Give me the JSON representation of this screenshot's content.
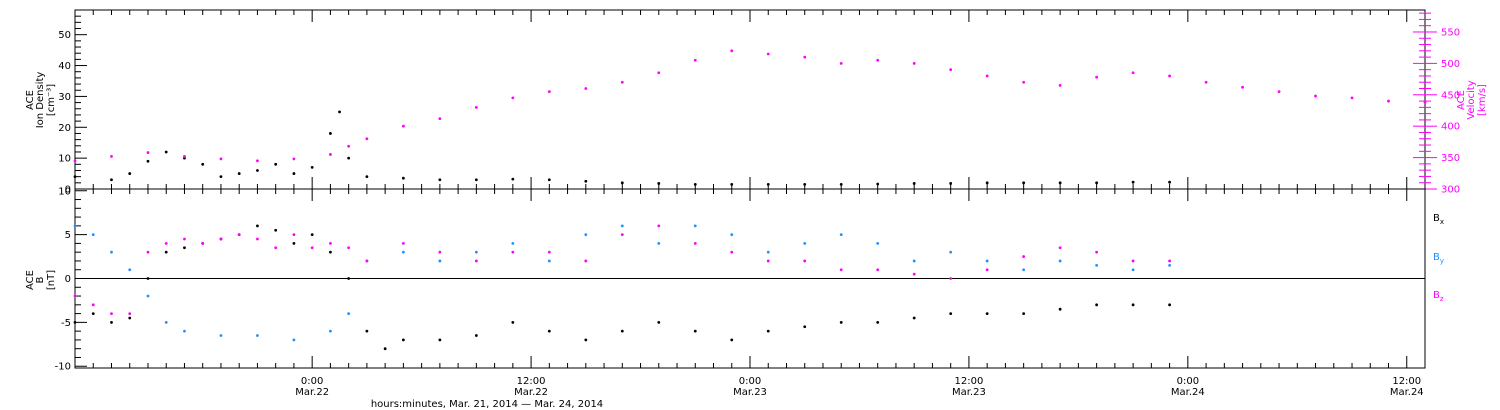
{
  "chart_data": [
    {
      "type": "scatter",
      "left_axis": {
        "label_lines": [
          "ACE",
          "Ion Density",
          "[cm⁻³]"
        ],
        "ylim": [
          0,
          58
        ],
        "ticks": [
          0,
          10,
          20,
          30,
          40,
          50
        ],
        "tick_labels": [
          "0",
          "10",
          "20",
          "30",
          "40",
          "50"
        ]
      },
      "right_axis": {
        "label_lines": [
          "ACE",
          "Velocity",
          "[km/s]"
        ],
        "ylim": [
          300,
          585
        ],
        "ticks": [
          300,
          350,
          400,
          450,
          500,
          550
        ],
        "tick_labels": [
          "300",
          "350",
          "400",
          "450",
          "500",
          "550"
        ],
        "color": "#ff00ff"
      },
      "series": [
        {
          "key": "density",
          "axis": "left",
          "color": "#000000",
          "points": [
            [
              0,
              4
            ],
            [
              2,
              3
            ],
            [
              3,
              5
            ],
            [
              4,
              9
            ],
            [
              5,
              12
            ],
            [
              6,
              10
            ],
            [
              7,
              8
            ],
            [
              8,
              4
            ],
            [
              9,
              5
            ],
            [
              10,
              6
            ],
            [
              11,
              8
            ],
            [
              12,
              5
            ],
            [
              13,
              7
            ],
            [
              14,
              18
            ],
            [
              14.5,
              25
            ],
            [
              15,
              10
            ],
            [
              16,
              4
            ],
            [
              18,
              3.5
            ],
            [
              20,
              3
            ],
            [
              22,
              3
            ],
            [
              24,
              3.2
            ],
            [
              26,
              3
            ],
            [
              28,
              2.5
            ],
            [
              30,
              2
            ],
            [
              32,
              1.8
            ],
            [
              34,
              1.5
            ],
            [
              36,
              1.5
            ],
            [
              38,
              1.5
            ],
            [
              40,
              1.5
            ],
            [
              42,
              1.5
            ],
            [
              44,
              1.6
            ],
            [
              46,
              1.8
            ],
            [
              48,
              1.8
            ],
            [
              50,
              2
            ],
            [
              52,
              2
            ],
            [
              54,
              2
            ],
            [
              56,
              2
            ],
            [
              58,
              2.2
            ],
            [
              60,
              2.2
            ]
          ]
        },
        {
          "key": "velocity",
          "axis": "right",
          "color": "#ff00ff",
          "points": [
            [
              0,
              345
            ],
            [
              2,
              352
            ],
            [
              4,
              358
            ],
            [
              6,
              352
            ],
            [
              8,
              348
            ],
            [
              10,
              345
            ],
            [
              12,
              348
            ],
            [
              14,
              355
            ],
            [
              15,
              368
            ],
            [
              16,
              380
            ],
            [
              18,
              400
            ],
            [
              20,
              412
            ],
            [
              22,
              430
            ],
            [
              24,
              445
            ],
            [
              26,
              455
            ],
            [
              28,
              460
            ],
            [
              30,
              470
            ],
            [
              32,
              485
            ],
            [
              34,
              505
            ],
            [
              36,
              520
            ],
            [
              38,
              515
            ],
            [
              40,
              510
            ],
            [
              42,
              500
            ],
            [
              44,
              505
            ],
            [
              46,
              500
            ],
            [
              48,
              490
            ],
            [
              50,
              480
            ],
            [
              52,
              470
            ],
            [
              54,
              465
            ],
            [
              56,
              478
            ],
            [
              58,
              485
            ],
            [
              60,
              480
            ],
            [
              62,
              470
            ],
            [
              64,
              462
            ],
            [
              66,
              455
            ],
            [
              68,
              448
            ],
            [
              70,
              445
            ],
            [
              72,
              440
            ],
            [
              74,
              438
            ]
          ]
        }
      ]
    },
    {
      "type": "scatter",
      "left_axis": {
        "label_lines": [
          "ACE",
          "B",
          "[nT]"
        ],
        "ylim": [
          -10.2,
          10.2
        ],
        "ticks": [
          -10,
          -5,
          0,
          5,
          10
        ],
        "tick_labels": [
          "-10",
          "-5",
          "0",
          "5",
          "10"
        ]
      },
      "zero_line": 0,
      "legend": [
        {
          "base": "B",
          "sub": "x",
          "color": "#000000"
        },
        {
          "base": "B",
          "sub": "y",
          "color": "#1e90ff"
        },
        {
          "base": "B",
          "sub": "z",
          "color": "#ff00ff"
        }
      ],
      "series": [
        {
          "key": "Bx",
          "color": "#000000",
          "points": [
            [
              0,
              -5
            ],
            [
              1,
              -4
            ],
            [
              2,
              -5
            ],
            [
              3,
              -4.5
            ],
            [
              4,
              0
            ],
            [
              5,
              3
            ],
            [
              6,
              3.5
            ],
            [
              7,
              4
            ],
            [
              8,
              4.5
            ],
            [
              9,
              5
            ],
            [
              10,
              6
            ],
            [
              11,
              5.5
            ],
            [
              12,
              4
            ],
            [
              13,
              5
            ],
            [
              14,
              3
            ],
            [
              15,
              0
            ],
            [
              16,
              -6
            ],
            [
              17,
              -8
            ],
            [
              18,
              -7
            ],
            [
              20,
              -7
            ],
            [
              22,
              -6.5
            ],
            [
              24,
              -5
            ],
            [
              26,
              -6
            ],
            [
              28,
              -7
            ],
            [
              30,
              -6
            ],
            [
              32,
              -5
            ],
            [
              34,
              -6
            ],
            [
              36,
              -7
            ],
            [
              38,
              -6
            ],
            [
              40,
              -5.5
            ],
            [
              42,
              -5
            ],
            [
              44,
              -5
            ],
            [
              46,
              -4.5
            ],
            [
              48,
              -4
            ],
            [
              50,
              -4
            ],
            [
              52,
              -4
            ],
            [
              54,
              -3.5
            ],
            [
              56,
              -3
            ],
            [
              58,
              -3
            ],
            [
              60,
              -3
            ]
          ]
        },
        {
          "key": "By",
          "color": "#1e90ff",
          "points": [
            [
              0,
              6
            ],
            [
              1,
              5
            ],
            [
              2,
              3
            ],
            [
              3,
              1
            ],
            [
              4,
              -2
            ],
            [
              5,
              -5
            ],
            [
              6,
              -6
            ],
            [
              8,
              -6.5
            ],
            [
              10,
              -6.5
            ],
            [
              12,
              -7
            ],
            [
              14,
              -6
            ],
            [
              15,
              -4
            ],
            [
              16,
              2
            ],
            [
              18,
              3
            ],
            [
              20,
              2
            ],
            [
              22,
              3
            ],
            [
              24,
              4
            ],
            [
              26,
              2
            ],
            [
              28,
              5
            ],
            [
              30,
              6
            ],
            [
              32,
              4
            ],
            [
              34,
              6
            ],
            [
              36,
              5
            ],
            [
              38,
              3
            ],
            [
              40,
              4
            ],
            [
              42,
              5
            ],
            [
              44,
              4
            ],
            [
              46,
              2
            ],
            [
              48,
              3
            ],
            [
              50,
              2
            ],
            [
              52,
              1
            ],
            [
              54,
              2
            ],
            [
              56,
              1.5
            ],
            [
              58,
              1
            ],
            [
              60,
              1.5
            ]
          ]
        },
        {
          "key": "Bz",
          "color": "#ff00ff",
          "points": [
            [
              0,
              -2
            ],
            [
              1,
              -3
            ],
            [
              2,
              -4
            ],
            [
              3,
              -4
            ],
            [
              4,
              3
            ],
            [
              5,
              4
            ],
            [
              6,
              4.5
            ],
            [
              7,
              4
            ],
            [
              8,
              4.5
            ],
            [
              9,
              5
            ],
            [
              10,
              4.5
            ],
            [
              11,
              3.5
            ],
            [
              12,
              5
            ],
            [
              13,
              3.5
            ],
            [
              14,
              4
            ],
            [
              15,
              3.5
            ],
            [
              16,
              2
            ],
            [
              18,
              4
            ],
            [
              20,
              3
            ],
            [
              22,
              2
            ],
            [
              24,
              3
            ],
            [
              26,
              3
            ],
            [
              28,
              2
            ],
            [
              30,
              5
            ],
            [
              32,
              6
            ],
            [
              34,
              4
            ],
            [
              36,
              3
            ],
            [
              38,
              2
            ],
            [
              40,
              2
            ],
            [
              42,
              1
            ],
            [
              44,
              1
            ],
            [
              46,
              0.5
            ],
            [
              48,
              0
            ],
            [
              50,
              1
            ],
            [
              52,
              2.5
            ],
            [
              54,
              3.5
            ],
            [
              56,
              3
            ],
            [
              58,
              2
            ],
            [
              60,
              2
            ]
          ]
        }
      ]
    }
  ],
  "x_axis": {
    "xlim": [
      0,
      74
    ],
    "ticks": [
      {
        "x": 13,
        "time": "0:00",
        "date": "Mar.22"
      },
      {
        "x": 25,
        "time": "12:00",
        "date": "Mar.22"
      },
      {
        "x": 37,
        "time": "0:00",
        "date": "Mar.23"
      },
      {
        "x": 49,
        "time": "12:00",
        "date": "Mar.23"
      },
      {
        "x": 61,
        "time": "0:00",
        "date": "Mar.24"
      },
      {
        "x": 73,
        "time": "12:00",
        "date": "Mar.24"
      }
    ],
    "minor_step": 1,
    "label": "hours:minutes, Mar. 21, 2014 — Mar. 24, 2014"
  }
}
